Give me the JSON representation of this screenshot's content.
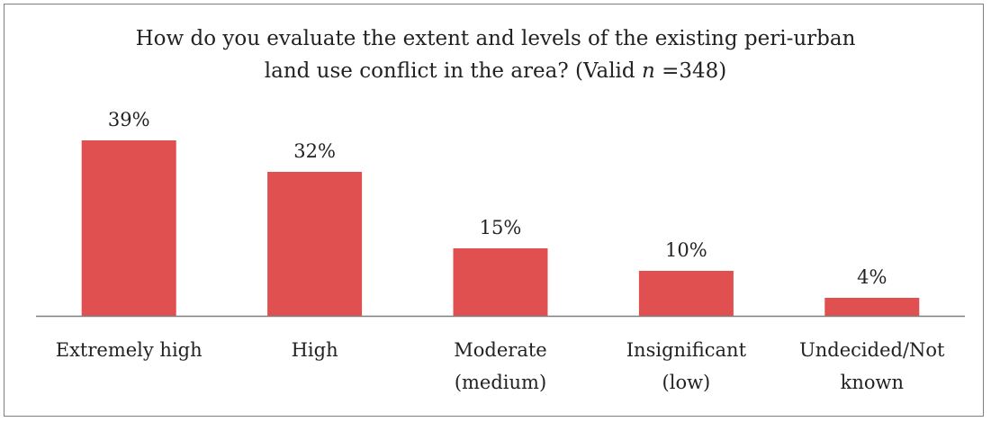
{
  "chart_data": {
    "type": "bar",
    "title_line1": "How do you evaluate the extent and levels of the existing peri-urban",
    "title_line2_prefix": "land use conflict in the area? (Valid ",
    "title_line2_italic": "n",
    "title_line2_suffix": " =348)",
    "categories": [
      [
        "Extremely high"
      ],
      [
        "High"
      ],
      [
        "Moderate",
        "(medium)"
      ],
      [
        "Insignificant",
        "(low)"
      ],
      [
        "Undecided/Not",
        "known"
      ]
    ],
    "values": [
      39,
      32,
      15,
      10,
      4
    ],
    "value_labels": [
      "39%",
      "32%",
      "15%",
      "10%",
      "4%"
    ],
    "ylim": [
      0,
      39
    ],
    "bar_color": "#e05050",
    "grid": false,
    "legend": false
  }
}
